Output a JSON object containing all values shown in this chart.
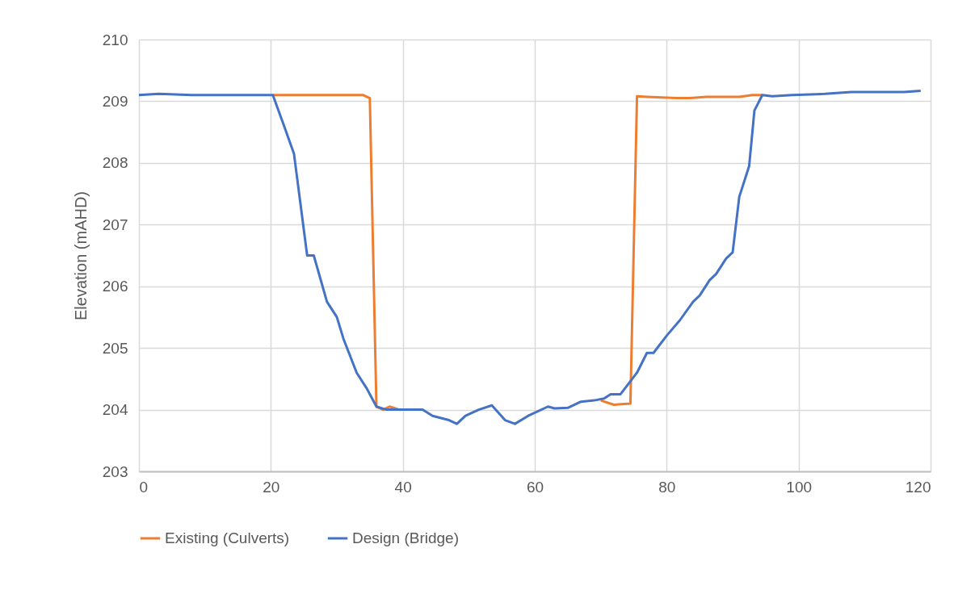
{
  "chart_data": {
    "type": "line",
    "ylabel": "Elevation (mAHD)",
    "xlim": [
      0,
      120
    ],
    "xticks": [
      0,
      20,
      40,
      60,
      80,
      100,
      120
    ],
    "ylim": [
      203,
      210
    ],
    "yticks": [
      203,
      204,
      205,
      206,
      207,
      208,
      209,
      210
    ],
    "grid": true,
    "legend": "bottom",
    "marker": "none",
    "line_style": "solid",
    "series": [
      {
        "name": "Existing (Culverts)",
        "color": "#ed7d31",
        "x": [
          20.3,
          34,
          35,
          36,
          37,
          38,
          39.5,
          43,
          44.5,
          47,
          48.2,
          49.5,
          51.5,
          53.5,
          55.5,
          57,
          59,
          62,
          63,
          65,
          67,
          69,
          70,
          72,
          74.5,
          75.5,
          77,
          81.5,
          83.5,
          86,
          91,
          93,
          94.5
        ],
        "values": [
          209.1,
          209.1,
          209.05,
          204.05,
          204,
          204.05,
          204,
          null,
          null,
          null,
          null,
          null,
          null,
          null,
          null,
          null,
          null,
          null,
          null,
          null,
          null,
          null,
          204.15,
          204.08,
          204.1,
          209.08,
          209.07,
          209.05,
          209.05,
          209.07,
          209.07,
          209.1,
          209.1
        ]
      },
      {
        "name": "Design (Bridge)",
        "color": "#4472c4",
        "x": [
          0,
          3,
          8,
          16,
          20.3,
          22,
          23.5,
          25.5,
          26.5,
          28.5,
          30,
          31,
          33,
          34.5,
          36,
          37.5,
          40,
          43,
          44.5,
          47,
          48.2,
          49.5,
          51.5,
          53.5,
          55.5,
          57,
          59,
          62,
          63,
          65,
          67,
          69,
          70.5,
          71.5,
          73,
          75.5,
          77,
          78,
          80,
          82,
          84,
          85,
          86.5,
          87.5,
          89,
          90,
          91,
          92.5,
          93.3,
          94.5,
          96,
          99,
          104,
          108,
          116,
          118.5
        ],
        "values": [
          209.1,
          209.12,
          209.1,
          209.1,
          209.1,
          208.6,
          208.15,
          206.5,
          206.5,
          205.75,
          205.5,
          205.15,
          204.6,
          204.35,
          204.05,
          204,
          204,
          204,
          203.9,
          203.83,
          203.77,
          203.9,
          204,
          204.07,
          203.83,
          203.77,
          203.9,
          204.05,
          204.02,
          204.03,
          204.13,
          204.15,
          204.18,
          204.25,
          204.25,
          204.6,
          204.92,
          204.92,
          205.2,
          205.45,
          205.75,
          205.85,
          206.1,
          206.2,
          206.45,
          206.55,
          207.45,
          207.95,
          208.85,
          209.1,
          209.08,
          209.1,
          209.12,
          209.15,
          209.15,
          209.17
        ]
      }
    ]
  }
}
